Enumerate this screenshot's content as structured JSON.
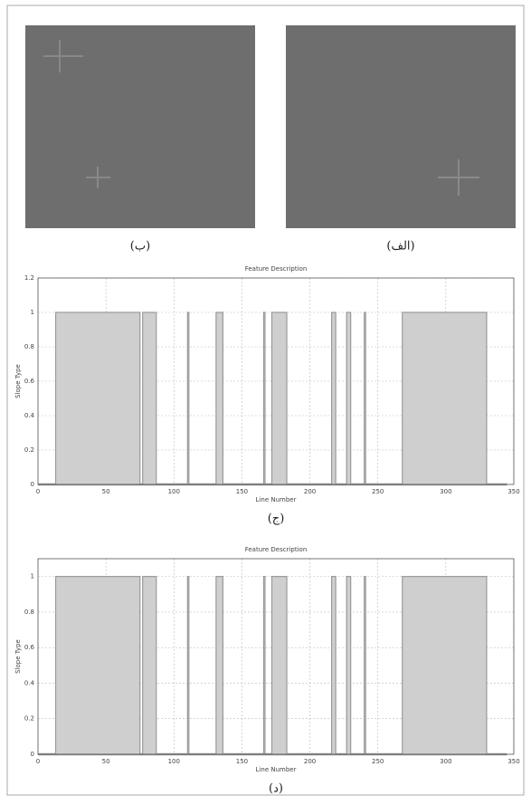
{
  "images": [
    {
      "caption": "(ب)"
    },
    {
      "caption": "(الف)"
    }
  ],
  "chart_data": [
    {
      "type": "stem",
      "title": "Feature Description",
      "y_label": "Slope Type",
      "x_label": "Line Number",
      "caption": "(ج)",
      "x_start": [
        13,
        77,
        110,
        131,
        166,
        172,
        216,
        227,
        240,
        268
      ],
      "x_end": [
        75,
        87,
        111,
        136,
        167,
        183,
        219,
        230,
        241,
        330
      ],
      "values": [
        1,
        1,
        1,
        1,
        1,
        1,
        1,
        1,
        1,
        1
      ],
      "color": "#9a9a9a",
      "xlim": [
        0,
        350
      ],
      "xticks": [
        0,
        50,
        100,
        150,
        200,
        250,
        300,
        350
      ],
      "ylim": [
        0,
        1.2
      ],
      "yticks": [
        0,
        0.2,
        0.4,
        0.6,
        0.8,
        1,
        1.2
      ],
      "grid": true
    },
    {
      "type": "stem",
      "title": "Feature Description",
      "y_label": "Slope Type",
      "x_label": "Line Number",
      "caption": "(د)",
      "x_start": [
        13,
        77,
        110,
        131,
        166,
        172,
        216,
        227,
        240,
        268
      ],
      "x_end": [
        75,
        87,
        111,
        136,
        167,
        183,
        219,
        230,
        241,
        330
      ],
      "values": [
        1,
        1,
        1,
        1,
        1,
        1,
        1,
        1,
        1,
        1
      ],
      "color": "#9a9a9a",
      "xlim": [
        0,
        350
      ],
      "xticks": [
        0,
        50,
        100,
        150,
        200,
        250,
        300,
        350
      ],
      "ylim": [
        0,
        1.1
      ],
      "yticks": [
        0,
        0.2,
        0.4,
        0.6,
        0.8,
        1
      ],
      "grid": true
    }
  ]
}
